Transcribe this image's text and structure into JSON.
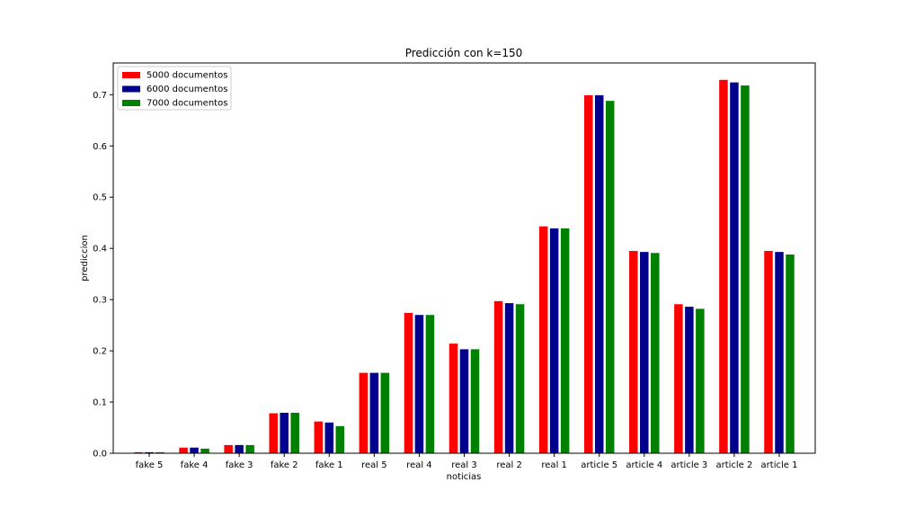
{
  "chart_data": {
    "type": "bar",
    "title": "Predicción con k=150",
    "xlabel": "noticias",
    "ylabel": "prediccion",
    "ylim": [
      0,
      0.762
    ],
    "yticks": [
      "0.0",
      "0.1",
      "0.2",
      "0.3",
      "0.4",
      "0.5",
      "0.6",
      "0.7"
    ],
    "grid": false,
    "legend_position": "top-left",
    "categories": [
      "fake 5",
      "fake 4",
      "fake 3",
      "fake 2",
      "fake 1",
      "real 5",
      "real 4",
      "real 3",
      "real 2",
      "real 1",
      "article 5",
      "article 4",
      "article 3",
      "article 2",
      "article 1"
    ],
    "series": [
      {
        "name": "5000 documentos",
        "color": "#ff0000",
        "values": [
          0.002,
          0.011,
          0.016,
          0.078,
          0.062,
          0.157,
          0.274,
          0.214,
          0.297,
          0.443,
          0.699,
          0.395,
          0.291,
          0.729,
          0.395
        ]
      },
      {
        "name": "6000 documentos",
        "color": "#00008b",
        "values": [
          0.002,
          0.011,
          0.016,
          0.079,
          0.06,
          0.157,
          0.27,
          0.203,
          0.293,
          0.439,
          0.699,
          0.393,
          0.286,
          0.724,
          0.393
        ]
      },
      {
        "name": "7000 documentos",
        "color": "#008000",
        "values": [
          0.002,
          0.009,
          0.016,
          0.079,
          0.053,
          0.157,
          0.27,
          0.203,
          0.291,
          0.439,
          0.688,
          0.391,
          0.282,
          0.718,
          0.388
        ]
      }
    ]
  }
}
